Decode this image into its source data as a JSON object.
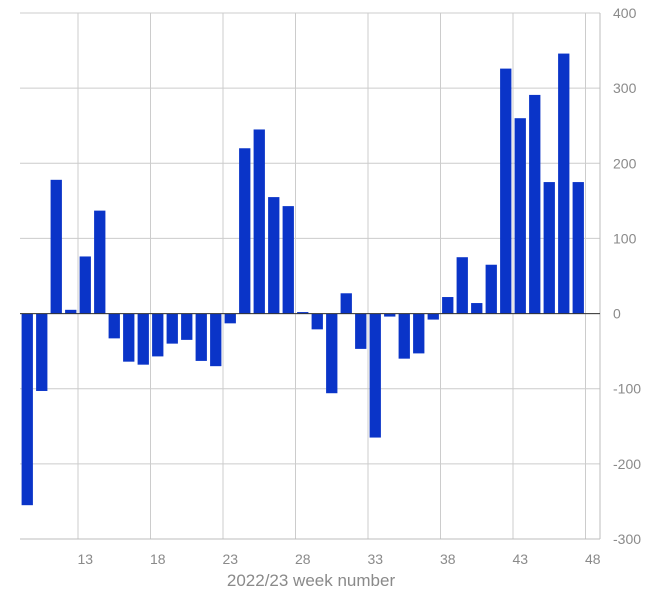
{
  "chart_data": {
    "type": "bar",
    "xlabel": "2022/23 week number",
    "ylabel": "",
    "ylim": [
      -300,
      400
    ],
    "yticks": [
      -300,
      -200,
      -100,
      0,
      100,
      200,
      300,
      400
    ],
    "xticks": [
      13,
      18,
      23,
      28,
      33,
      38,
      43,
      48
    ],
    "grid": true,
    "y_axis_side": "right",
    "bar_color": "#0a34c8",
    "categories": [
      9,
      10,
      11,
      12,
      13,
      14,
      15,
      16,
      17,
      18,
      19,
      20,
      21,
      22,
      23,
      24,
      25,
      26,
      27,
      28,
      29,
      30,
      31,
      32,
      33,
      34,
      35,
      36,
      37,
      38,
      39,
      40,
      41,
      42,
      43,
      44,
      45,
      46,
      47,
      48
    ],
    "values": [
      -255,
      -103,
      178,
      5,
      76,
      137,
      -33,
      -64,
      -68,
      -57,
      -40,
      -35,
      -63,
      -70,
      -13,
      220,
      245,
      155,
      143,
      2,
      -21,
      -106,
      27,
      -47,
      -165,
      -4,
      -60,
      -53,
      -8,
      22,
      75,
      14,
      65,
      326,
      260,
      291,
      175,
      346,
      175,
      0
    ]
  }
}
